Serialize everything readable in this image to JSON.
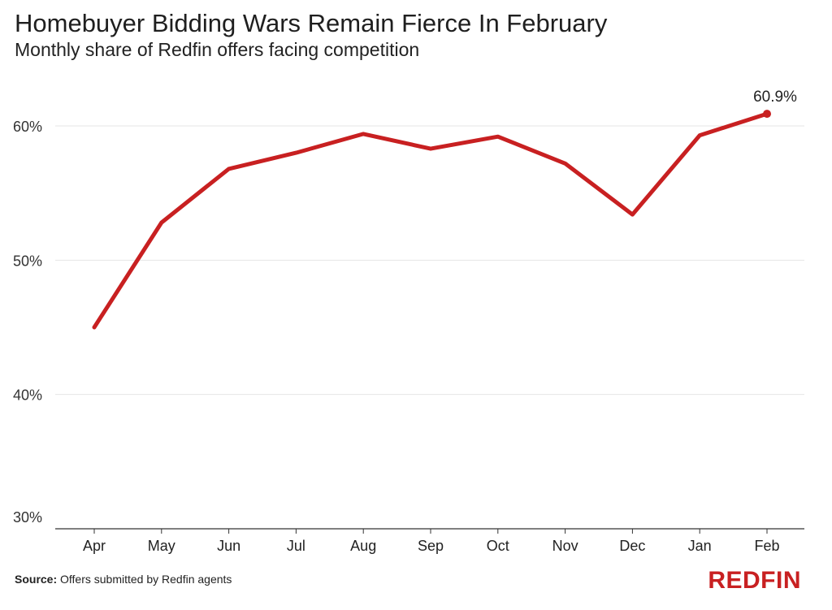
{
  "title": "Homebuyer Bidding Wars Remain Fierce In February",
  "subtitle": "Monthly share of Redfin offers facing competition",
  "source_label": "Source:",
  "source_text": "Offers submitted by Redfin agents",
  "logo_text": "REDFIN",
  "colors": {
    "line": "#c82021",
    "grid": "#e6e6e6",
    "axis": "#333333"
  },
  "chart_data": {
    "type": "line",
    "title": "Homebuyer Bidding Wars Remain Fierce In February",
    "subtitle": "Monthly share of Redfin offers facing competition",
    "xlabel": "",
    "ylabel": "",
    "categories": [
      "Apr",
      "May",
      "Jun",
      "Jul",
      "Aug",
      "Sep",
      "Oct",
      "Nov",
      "Dec",
      "Jan",
      "Feb"
    ],
    "series": [
      {
        "values": [
          45.0,
          52.8,
          56.8,
          58.0,
          59.4,
          58.3,
          59.2,
          57.2,
          53.4,
          59.3,
          60.9
        ]
      }
    ],
    "ylim": [
      30,
      60.9
    ],
    "yticks": [
      30,
      40,
      50,
      60
    ],
    "ytick_labels": [
      "30%",
      "40%",
      "50%",
      "60%"
    ],
    "annotations": [
      {
        "category": "Feb",
        "text": "60.9%"
      }
    ],
    "grid": true,
    "legend": "none"
  }
}
